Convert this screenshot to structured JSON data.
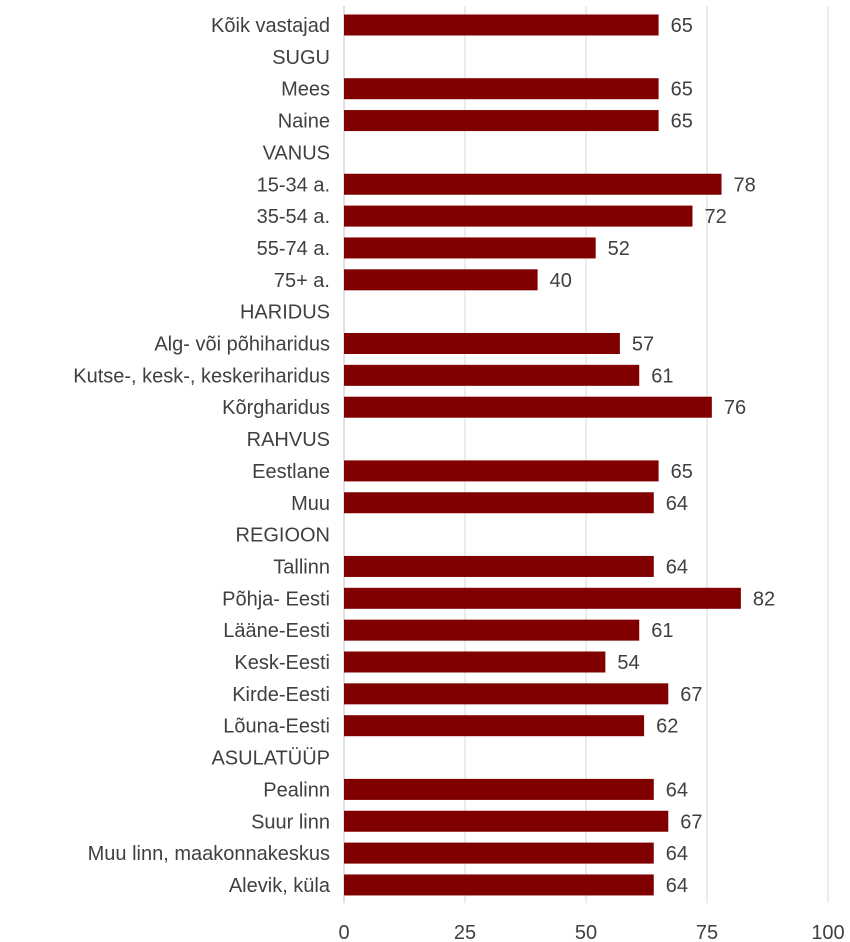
{
  "chart_data": {
    "type": "bar",
    "orientation": "horizontal",
    "categories": [
      "Kõik vastajad",
      "SUGU",
      "Mees",
      "Naine",
      "VANUS",
      "15-34 a.",
      "35-54 a.",
      "55-74 a.",
      "75+ a.",
      "HARIDUS",
      "Alg- või põhiharidus",
      "Kutse-, kesk-, keskeriharidus",
      "Kõrgharidus",
      "RAHVUS",
      "Eestlane",
      "Muu",
      "REGIOON",
      "Tallinn",
      "Põhja- Eesti",
      "Lääne-Eesti",
      "Kesk-Eesti",
      "Kirde-Eesti",
      "Lõuna-Eesti",
      "ASULATÜÜP",
      "Pealinn",
      "Suur linn",
      "Muu linn, maakonnakeskus",
      "Alevik, küla"
    ],
    "values": [
      65,
      null,
      65,
      65,
      null,
      78,
      72,
      52,
      40,
      null,
      57,
      61,
      76,
      null,
      65,
      64,
      null,
      64,
      82,
      61,
      54,
      67,
      62,
      null,
      64,
      67,
      64,
      64
    ],
    "xlim": [
      0,
      100
    ],
    "xticks": [
      0,
      25,
      50,
      75,
      100
    ],
    "grid": true,
    "bar_color": "#800000",
    "title": "",
    "xlabel": "",
    "ylabel": ""
  }
}
